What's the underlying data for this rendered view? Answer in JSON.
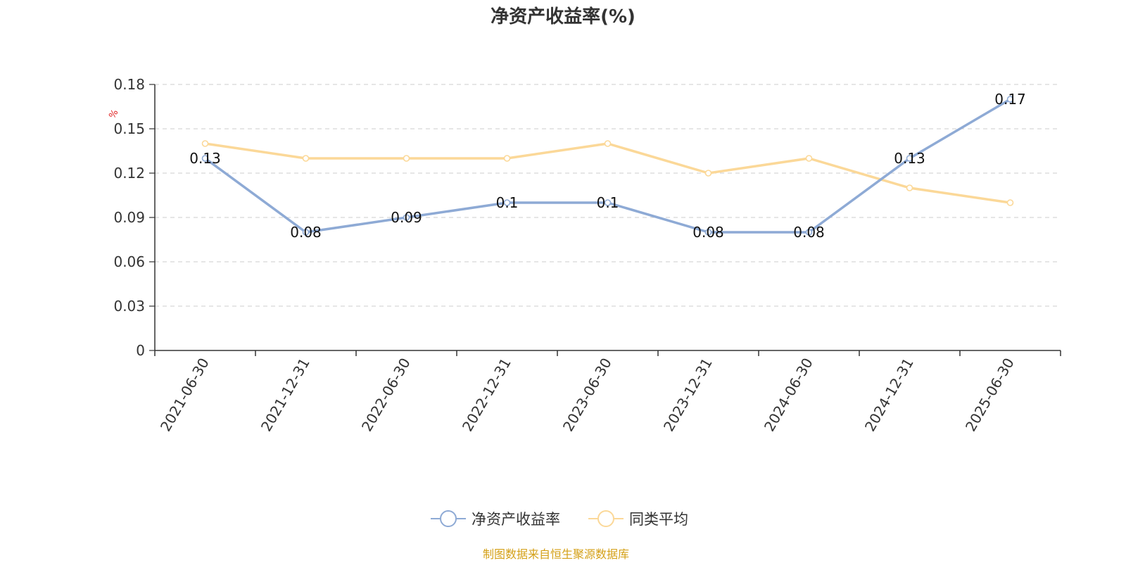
{
  "chart_data": {
    "type": "line",
    "title": "净资产收益率(%)",
    "ylabel": "%",
    "categories": [
      "2021-06-30",
      "2021-12-31",
      "2022-06-30",
      "2022-12-31",
      "2023-06-30",
      "2023-12-31",
      "2024-06-30",
      "2024-12-31",
      "2025-06-30"
    ],
    "y_ticks": [
      "0",
      "0.03",
      "0.06",
      "0.09",
      "0.12",
      "0.15",
      "0.18"
    ],
    "ylim": [
      0,
      0.18
    ],
    "grid": true,
    "legend_position": "bottom-center",
    "series": [
      {
        "name": "净资产收益率",
        "color": "#8eaad5",
        "values": [
          0.13,
          0.08,
          0.09,
          0.1,
          0.1,
          0.08,
          0.08,
          0.13,
          0.17
        ],
        "data_labels": [
          "0.13",
          "0.08",
          "0.09",
          "0.1",
          "0.1",
          "0.08",
          "0.08",
          "0.13",
          "0.17"
        ]
      },
      {
        "name": "同类平均",
        "color": "#fbd898",
        "values": [
          0.14,
          0.13,
          0.13,
          0.13,
          0.14,
          0.12,
          0.13,
          0.11,
          0.1
        ]
      }
    ]
  },
  "colors": {
    "unit_label": "#e02020",
    "source_text": "#d4a017",
    "axis": "#333333",
    "grid": "#cccccc"
  },
  "footer": {
    "source": "制图数据来自恒生聚源数据库"
  }
}
